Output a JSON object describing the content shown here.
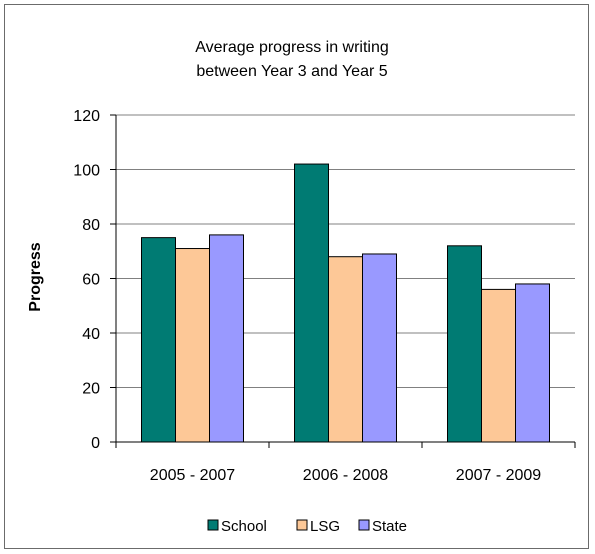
{
  "chart_data": {
    "type": "bar",
    "title_lines": [
      "Average progress in writing",
      "between Year 3 and Year 5"
    ],
    "xlabel": "",
    "ylabel": "Progress",
    "ylim": [
      0,
      120
    ],
    "yticks": [
      0,
      20,
      40,
      60,
      80,
      100,
      120
    ],
    "categories": [
      "2005 - 2007",
      "2006 - 2008",
      "2007 - 2009"
    ],
    "series": [
      {
        "name": "School",
        "color": "#007b73",
        "values": [
          75,
          102,
          72
        ]
      },
      {
        "name": "LSG",
        "color": "#fdc897",
        "values": [
          71,
          68,
          56
        ]
      },
      {
        "name": "State",
        "color": "#9999ff",
        "values": [
          76,
          69,
          58
        ]
      }
    ],
    "grid": true,
    "legend_position": "bottom"
  }
}
